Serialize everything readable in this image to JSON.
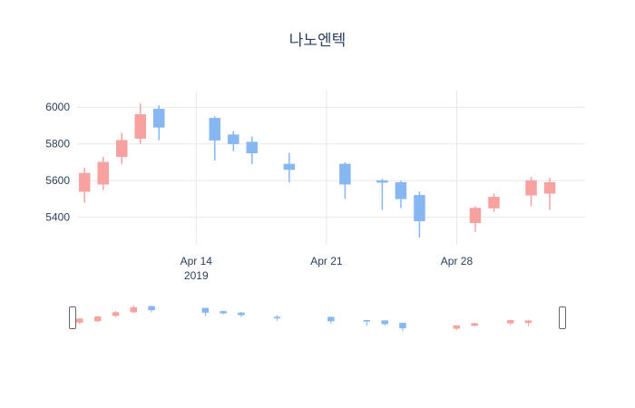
{
  "title": "나노엔텍",
  "chart_data": {
    "type": "candlestick",
    "title": "나노엔텍",
    "legend": "none",
    "grid": "on",
    "x_axis": {
      "ticks": [
        {
          "label": "Apr 14",
          "sublabel": "2019",
          "day": 0
        },
        {
          "label": "Apr 21",
          "sublabel": "",
          "day": 7
        },
        {
          "label": "Apr 28",
          "sublabel": "",
          "day": 14
        }
      ]
    },
    "y_axis": {
      "ticks": [
        "5400",
        "5600",
        "5800",
        "6000"
      ],
      "range": [
        5250,
        6090
      ]
    },
    "colors": {
      "increasing": "#f7a1a1",
      "decreasing": "#86b7f0",
      "grid": "#e8e8e8",
      "tick_text": "#2a3f5f",
      "handle_border": "#666666",
      "handle_fill": "#ffffff"
    },
    "candles": [
      {
        "date": "2019-04-08",
        "day": -6,
        "open": 5540,
        "high": 5670,
        "low": 5480,
        "close": 5640
      },
      {
        "date": "2019-04-09",
        "day": -5,
        "open": 5580,
        "high": 5730,
        "low": 5550,
        "close": 5700
      },
      {
        "date": "2019-04-10",
        "day": -4,
        "open": 5730,
        "high": 5860,
        "low": 5690,
        "close": 5820
      },
      {
        "date": "2019-04-11",
        "day": -3,
        "open": 5830,
        "high": 6020,
        "low": 5800,
        "close": 5960
      },
      {
        "date": "2019-04-12",
        "day": -2,
        "open": 5990,
        "high": 6010,
        "low": 5820,
        "close": 5890
      },
      {
        "date": "2019-04-15",
        "day": 1,
        "open": 5940,
        "high": 5950,
        "low": 5710,
        "close": 5820
      },
      {
        "date": "2019-04-16",
        "day": 2,
        "open": 5850,
        "high": 5870,
        "low": 5760,
        "close": 5800
      },
      {
        "date": "2019-04-17",
        "day": 3,
        "open": 5810,
        "high": 5840,
        "low": 5690,
        "close": 5750
      },
      {
        "date": "2019-04-19",
        "day": 5,
        "open": 5690,
        "high": 5750,
        "low": 5590,
        "close": 5660
      },
      {
        "date": "2019-04-22",
        "day": 8,
        "open": 5690,
        "high": 5700,
        "low": 5500,
        "close": 5580
      },
      {
        "date": "2019-04-24",
        "day": 10,
        "open": 5600,
        "high": 5610,
        "low": 5440,
        "close": 5590
      },
      {
        "date": "2019-04-25",
        "day": 11,
        "open": 5590,
        "high": 5600,
        "low": 5450,
        "close": 5500
      },
      {
        "date": "2019-04-26",
        "day": 12,
        "open": 5520,
        "high": 5540,
        "low": 5290,
        "close": 5380
      },
      {
        "date": "2019-04-29",
        "day": 15,
        "open": 5370,
        "high": 5460,
        "low": 5320,
        "close": 5450
      },
      {
        "date": "2019-04-30",
        "day": 16,
        "open": 5450,
        "high": 5530,
        "low": 5430,
        "close": 5510
      },
      {
        "date": "2019-05-02",
        "day": 18,
        "open": 5520,
        "high": 5620,
        "low": 5460,
        "close": 5600
      },
      {
        "date": "2019-05-03",
        "day": 19,
        "open": 5530,
        "high": 5615,
        "low": 5440,
        "close": 5590
      }
    ],
    "rangeslider": {
      "visible": true,
      "selection": "full-range"
    }
  }
}
